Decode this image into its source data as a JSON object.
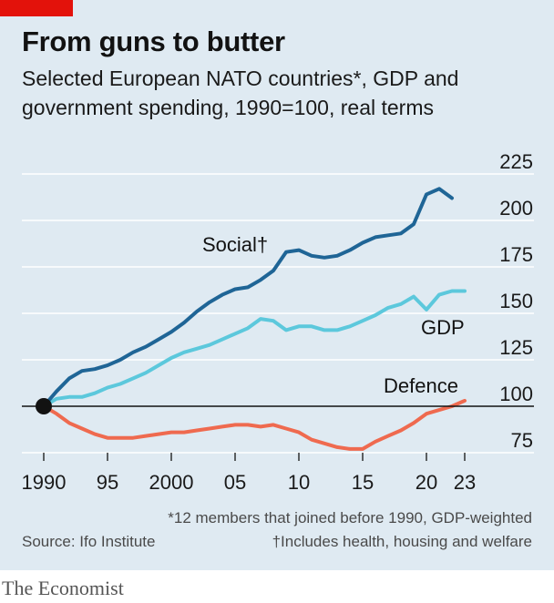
{
  "header": {
    "title": "From guns to butter",
    "subtitle_line1": "Selected European NATO countries*, GDP and",
    "subtitle_line2": "government spending, 1990=100, real terms"
  },
  "footer": {
    "note1": "*12 members that joined before 1990, GDP-weighted",
    "source": "Source: Ifo Institute",
    "note2": "†Includes health, housing and welfare"
  },
  "brand": "The Economist",
  "colors": {
    "background": "#dfeaf2",
    "accent": "#e3120b",
    "social": "#1f6596",
    "gdp": "#5cc8dc",
    "defence": "#ef6a4f",
    "grid": "#ffffff",
    "baseline": "#121212"
  },
  "chart_data": {
    "type": "line",
    "title": "From guns to butter",
    "x_tick_labels": [
      {
        "x": 1990,
        "label": "1990"
      },
      {
        "x": 1995,
        "label": "95"
      },
      {
        "x": 2000,
        "label": "2000"
      },
      {
        "x": 2005,
        "label": "05"
      },
      {
        "x": 2010,
        "label": "10"
      },
      {
        "x": 2015,
        "label": "15"
      },
      {
        "x": 2020,
        "label": "20"
      },
      {
        "x": 2023,
        "label": "23"
      }
    ],
    "y_ticks": [
      75,
      100,
      125,
      150,
      175,
      200,
      225
    ],
    "xlim": [
      1990,
      2023
    ],
    "ylim": [
      75,
      225
    ],
    "baseline": 100,
    "grid": true,
    "series": [
      {
        "name": "Social†",
        "color": "#1f6596",
        "x": [
          1990,
          1991,
          1992,
          1993,
          1994,
          1995,
          1996,
          1997,
          1998,
          1999,
          2000,
          2001,
          2002,
          2003,
          2004,
          2005,
          2006,
          2007,
          2008,
          2009,
          2010,
          2011,
          2012,
          2013,
          2014,
          2015,
          2016,
          2017,
          2018,
          2019,
          2020,
          2021,
          2022
        ],
        "values": [
          100,
          108,
          115,
          119,
          120,
          122,
          125,
          129,
          132,
          136,
          140,
          145,
          151,
          156,
          160,
          163,
          164,
          168,
          173,
          183,
          184,
          181,
          180,
          181,
          184,
          188,
          191,
          192,
          193,
          198,
          214,
          217,
          212
        ]
      },
      {
        "name": "GDP",
        "color": "#5cc8dc",
        "x": [
          1990,
          1991,
          1992,
          1993,
          1994,
          1995,
          1996,
          1997,
          1998,
          1999,
          2000,
          2001,
          2002,
          2003,
          2004,
          2005,
          2006,
          2007,
          2008,
          2009,
          2010,
          2011,
          2012,
          2013,
          2014,
          2015,
          2016,
          2017,
          2018,
          2019,
          2020,
          2021,
          2022,
          2023
        ],
        "values": [
          100,
          104,
          105,
          105,
          107,
          110,
          112,
          115,
          118,
          122,
          126,
          129,
          131,
          133,
          136,
          139,
          142,
          147,
          146,
          141,
          143,
          143,
          141,
          141,
          143,
          146,
          149,
          153,
          155,
          159,
          152,
          160,
          162,
          162
        ]
      },
      {
        "name": "Defence",
        "color": "#ef6a4f",
        "x": [
          1990,
          1991,
          1992,
          1993,
          1994,
          1995,
          1996,
          1997,
          1998,
          1999,
          2000,
          2001,
          2002,
          2003,
          2004,
          2005,
          2006,
          2007,
          2008,
          2009,
          2010,
          2011,
          2012,
          2013,
          2014,
          2015,
          2016,
          2017,
          2018,
          2019,
          2020,
          2021,
          2022,
          2023
        ],
        "values": [
          100,
          96,
          91,
          88,
          85,
          83,
          83,
          83,
          84,
          85,
          86,
          86,
          87,
          88,
          89,
          90,
          90,
          89,
          90,
          88,
          86,
          82,
          80,
          78,
          77,
          77,
          81,
          84,
          87,
          91,
          96,
          98,
          100,
          103
        ]
      }
    ],
    "annotations": [
      "Social†",
      "GDP",
      "Defence"
    ]
  }
}
